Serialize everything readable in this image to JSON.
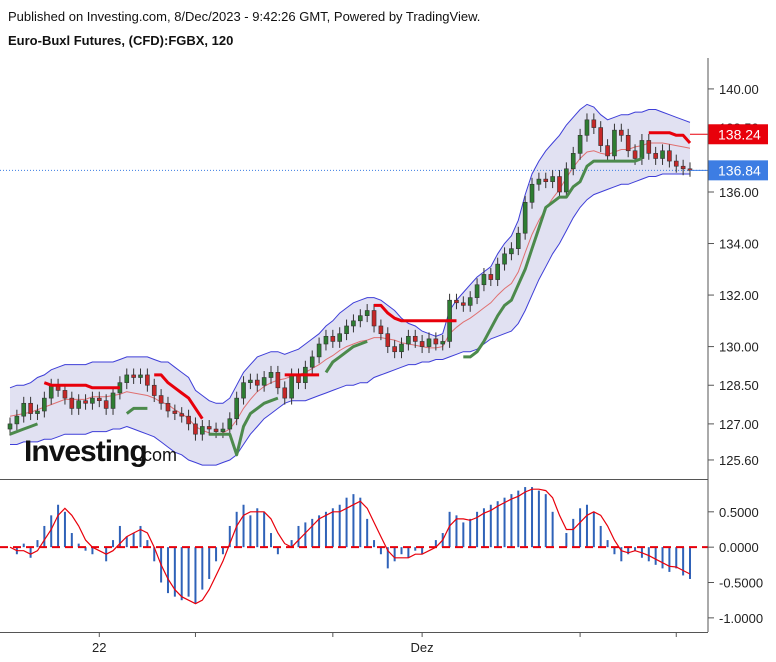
{
  "header": {
    "published": "Published on Investing.com, 8/Dec/2023 - 9:42:26 GMT, Powered by TradingView.",
    "title": "Euro-Buxl Futures, (CFD):FGBX, 120"
  },
  "logo": {
    "brand": "Investing",
    "suffix": ".com"
  },
  "chart_data": [
    {
      "type": "line",
      "panel": "price",
      "y_ticks": [
        140.0,
        138.5,
        136.0,
        134.0,
        132.0,
        130.0,
        128.5,
        127.0,
        125.6
      ],
      "y_tick_labels": [
        "140.00",
        "138.50",
        "136.00",
        "134.00",
        "132.00",
        "130.00",
        "128.50",
        "127.00",
        "125.60"
      ],
      "ylim": [
        124.9,
        141.2
      ],
      "price_labels": [
        {
          "value": 138.24,
          "text": "138.24",
          "color": "#e8000b"
        },
        {
          "value": 136.84,
          "text": "136.84",
          "color": "#3d7de3"
        }
      ],
      "last_price_line": 136.84,
      "closes": [
        127.0,
        127.3,
        127.8,
        127.4,
        127.5,
        128.0,
        128.5,
        128.3,
        128.0,
        127.6,
        127.9,
        127.8,
        128.0,
        127.9,
        127.6,
        128.2,
        128.6,
        128.9,
        128.8,
        128.9,
        128.5,
        128.1,
        127.8,
        127.5,
        127.4,
        127.3,
        127.0,
        126.6,
        126.9,
        126.8,
        126.7,
        126.8,
        127.2,
        128.0,
        128.6,
        128.7,
        128.5,
        128.8,
        129.0,
        128.4,
        128.0,
        128.9,
        128.6,
        129.2,
        129.6,
        130.1,
        130.4,
        130.2,
        130.5,
        130.8,
        131.0,
        131.2,
        131.4,
        130.8,
        130.5,
        130.0,
        129.8,
        130.1,
        130.4,
        130.2,
        130.0,
        130.3,
        130.1,
        130.2,
        131.8,
        131.7,
        131.6,
        131.9,
        132.4,
        132.8,
        132.6,
        133.2,
        133.6,
        133.8,
        134.4,
        135.6,
        136.3,
        136.5,
        136.4,
        136.6,
        136.0,
        136.9,
        137.5,
        138.2,
        138.8,
        138.5,
        137.8,
        137.4,
        138.4,
        138.2,
        137.6,
        137.3,
        138.0,
        137.5,
        137.3,
        137.6,
        137.2,
        137.0,
        136.9,
        136.84
      ],
      "bb_upper": [
        128.4,
        128.5,
        128.5,
        128.6,
        128.8,
        128.9,
        129.1,
        129.2,
        129.3,
        129.3,
        129.3,
        129.3,
        129.4,
        129.4,
        129.4,
        129.4,
        129.5,
        129.6,
        129.6,
        129.6,
        129.6,
        129.5,
        129.4,
        129.4,
        129.2,
        129.0,
        128.8,
        128.3,
        128.1,
        127.9,
        127.8,
        127.8,
        128.0,
        128.5,
        129.0,
        129.3,
        129.6,
        129.7,
        129.8,
        129.8,
        129.7,
        129.8,
        129.9,
        130.1,
        130.3,
        130.5,
        130.8,
        131.0,
        131.3,
        131.5,
        131.7,
        131.8,
        131.9,
        131.9,
        131.8,
        131.6,
        131.4,
        131.1,
        130.9,
        130.8,
        130.6,
        130.5,
        130.4,
        130.5,
        131.4,
        131.8,
        132.1,
        132.4,
        132.7,
        132.9,
        133.1,
        133.6,
        134.0,
        134.3,
        134.9,
        135.9,
        136.7,
        137.2,
        137.6,
        137.9,
        138.2,
        138.6,
        138.9,
        139.2,
        139.4,
        139.3,
        139.0,
        138.8,
        138.9,
        139.0,
        139.0,
        139.1,
        139.1,
        139.2,
        139.2,
        139.1,
        139.0,
        138.9,
        138.8,
        138.7
      ],
      "bb_lower": [
        126.2,
        126.2,
        126.3,
        126.3,
        126.3,
        126.4,
        126.4,
        126.5,
        126.6,
        126.6,
        126.6,
        126.6,
        126.7,
        126.7,
        126.7,
        126.8,
        126.8,
        126.9,
        126.8,
        126.7,
        126.6,
        126.5,
        126.3,
        126.1,
        125.9,
        125.8,
        125.6,
        125.5,
        125.4,
        125.4,
        125.4,
        125.5,
        125.6,
        125.8,
        126.2,
        126.6,
        126.9,
        127.2,
        127.4,
        127.6,
        127.8,
        127.9,
        127.9,
        127.9,
        128.0,
        128.1,
        128.2,
        128.3,
        128.4,
        128.5,
        128.5,
        128.6,
        128.6,
        128.8,
        128.9,
        129.0,
        129.1,
        129.2,
        129.3,
        129.3,
        129.4,
        129.4,
        129.5,
        129.5,
        129.6,
        129.7,
        129.8,
        129.8,
        129.9,
        130.1,
        130.3,
        130.4,
        130.5,
        130.6,
        130.9,
        131.4,
        132.0,
        132.6,
        133.1,
        133.6,
        134.0,
        134.5,
        135.0,
        135.4,
        135.7,
        135.9,
        136.0,
        136.1,
        136.2,
        136.3,
        136.3,
        136.4,
        136.5,
        136.6,
        136.6,
        136.7,
        136.7,
        136.7,
        136.7,
        136.7
      ],
      "bb_basis": [
        127.3,
        127.35,
        127.4,
        127.45,
        127.55,
        127.65,
        127.75,
        127.85,
        127.95,
        127.95,
        127.95,
        127.95,
        128.05,
        128.05,
        128.05,
        128.1,
        128.15,
        128.25,
        128.2,
        128.15,
        128.1,
        128.0,
        127.85,
        127.75,
        127.55,
        127.4,
        127.2,
        126.9,
        126.75,
        126.65,
        126.6,
        126.65,
        126.8,
        127.15,
        127.6,
        127.95,
        128.25,
        128.45,
        128.6,
        128.7,
        128.75,
        128.85,
        128.9,
        129.0,
        129.15,
        129.3,
        129.5,
        129.65,
        129.85,
        130.0,
        130.1,
        130.2,
        130.25,
        130.35,
        130.35,
        130.3,
        130.25,
        130.15,
        130.1,
        130.05,
        130.0,
        129.95,
        129.95,
        130.0,
        130.5,
        130.75,
        130.95,
        131.1,
        131.3,
        131.5,
        131.7,
        132.0,
        132.25,
        132.45,
        132.9,
        133.65,
        134.35,
        134.9,
        135.35,
        135.75,
        136.1,
        136.55,
        136.95,
        137.3,
        137.55,
        137.6,
        137.5,
        137.45,
        137.55,
        137.65,
        137.65,
        137.75,
        137.8,
        137.9,
        137.9,
        137.9,
        137.85,
        137.8,
        137.75,
        137.7
      ],
      "stop_red": [
        {
          "i0": 5,
          "i1": 16,
          "v": [
            128.6,
            128.5,
            128.5,
            128.5,
            128.5,
            128.5,
            128.5,
            128.4,
            128.4,
            128.4,
            128.4,
            128.4
          ]
        },
        {
          "i0": 21,
          "i1": 28,
          "v": [
            128.9,
            128.9,
            128.6,
            128.4,
            128.2,
            128.0,
            127.6,
            127.2
          ]
        },
        {
          "i0": 40,
          "i1": 45,
          "v": [
            128.9,
            128.9,
            128.9,
            128.9,
            128.9,
            128.9
          ]
        },
        {
          "i0": 53,
          "i1": 65,
          "v": [
            131.6,
            131.6,
            131.3,
            131.1,
            131.0,
            131.0,
            131.0,
            131.0,
            131.0,
            131.0,
            131.0,
            131.0,
            131.0
          ]
        },
        {
          "i0": 93,
          "i1": 99,
          "v": [
            138.3,
            138.3,
            138.3,
            138.3,
            138.2,
            138.2,
            137.9
          ]
        }
      ],
      "stop_green": [
        {
          "i0": 0,
          "i1": 4,
          "v": [
            126.6,
            126.7,
            126.8,
            126.9,
            127.0
          ]
        },
        {
          "i0": 17,
          "i1": 20,
          "v": [
            127.4,
            127.6,
            127.6,
            127.6
          ]
        },
        {
          "i0": 29,
          "i1": 39,
          "v": [
            126.6,
            126.6,
            126.6,
            126.6,
            125.8,
            126.9,
            127.4,
            127.6,
            127.8,
            127.9,
            128.0
          ]
        },
        {
          "i0": 46,
          "i1": 52,
          "v": [
            129.0,
            129.4,
            129.6,
            129.8,
            130.0,
            130.1,
            130.2
          ]
        },
        {
          "i0": 66,
          "i1": 92,
          "v": [
            129.6,
            129.6,
            129.8,
            130.2,
            130.7,
            131.2,
            131.6,
            131.8,
            132.4,
            133.0,
            133.8,
            134.6,
            135.4,
            135.6,
            135.8,
            135.8,
            136.2,
            136.4,
            137.0,
            137.2,
            137.2,
            137.2,
            137.2,
            137.2,
            137.2,
            137.2,
            137.3
          ]
        }
      ]
    },
    {
      "type": "bar",
      "panel": "oscillator",
      "y_ticks": [
        0.5,
        0.0,
        -0.5,
        -1.0
      ],
      "y_tick_labels": [
        "0.5000",
        "0.0000",
        "-0.5000",
        "-1.0000"
      ],
      "ylim": [
        -1.2,
        0.95
      ],
      "zero_line": 0.0,
      "histogram": [
        0.0,
        -0.1,
        0.05,
        -0.15,
        0.1,
        0.3,
        0.45,
        0.6,
        0.5,
        0.2,
        0.05,
        -0.05,
        -0.1,
        0.0,
        -0.2,
        0.1,
        0.3,
        0.15,
        0.2,
        0.3,
        0.1,
        -0.2,
        -0.5,
        -0.65,
        -0.7,
        -0.75,
        -0.7,
        -0.8,
        -0.6,
        -0.45,
        -0.2,
        -0.1,
        0.3,
        0.5,
        0.6,
        0.45,
        0.55,
        0.5,
        0.2,
        -0.1,
        0.0,
        0.1,
        0.3,
        0.35,
        0.4,
        0.45,
        0.5,
        0.55,
        0.6,
        0.7,
        0.75,
        0.7,
        0.4,
        0.1,
        -0.1,
        -0.3,
        -0.2,
        -0.1,
        -0.15,
        -0.05,
        -0.1,
        0.0,
        0.1,
        0.2,
        0.5,
        0.45,
        0.35,
        0.4,
        0.5,
        0.55,
        0.6,
        0.65,
        0.7,
        0.75,
        0.8,
        0.85,
        0.85,
        0.8,
        0.75,
        0.5,
        0.0,
        0.2,
        0.4,
        0.55,
        0.6,
        0.5,
        0.3,
        0.1,
        -0.1,
        -0.2,
        -0.1,
        -0.05,
        -0.15,
        -0.2,
        -0.25,
        -0.3,
        -0.35,
        -0.3,
        -0.4,
        -0.45
      ],
      "signal": [
        0.0,
        -0.05,
        -0.05,
        -0.1,
        -0.05,
        0.1,
        0.25,
        0.45,
        0.55,
        0.45,
        0.3,
        0.1,
        0.0,
        -0.05,
        -0.1,
        -0.05,
        0.05,
        0.15,
        0.2,
        0.25,
        0.2,
        0.0,
        -0.25,
        -0.45,
        -0.6,
        -0.7,
        -0.75,
        -0.8,
        -0.75,
        -0.6,
        -0.4,
        -0.2,
        0.05,
        0.3,
        0.45,
        0.5,
        0.5,
        0.5,
        0.4,
        0.2,
        0.05,
        0.0,
        0.1,
        0.2,
        0.3,
        0.4,
        0.45,
        0.5,
        0.5,
        0.55,
        0.6,
        0.65,
        0.55,
        0.35,
        0.15,
        -0.05,
        -0.15,
        -0.15,
        -0.15,
        -0.1,
        -0.1,
        -0.05,
        0.0,
        0.1,
        0.3,
        0.4,
        0.4,
        0.38,
        0.42,
        0.48,
        0.52,
        0.58,
        0.63,
        0.68,
        0.72,
        0.78,
        0.82,
        0.82,
        0.8,
        0.7,
        0.45,
        0.25,
        0.25,
        0.35,
        0.45,
        0.5,
        0.45,
        0.3,
        0.1,
        -0.05,
        -0.08,
        -0.05,
        -0.08,
        -0.12,
        -0.17,
        -0.22,
        -0.27,
        -0.28,
        -0.33,
        -0.38
      ]
    }
  ],
  "x_axis": {
    "ticks": [
      {
        "i": 13,
        "label": "22"
      },
      {
        "i": 27,
        "label": ""
      },
      {
        "i": 47,
        "label": ""
      },
      {
        "i": 60,
        "label": "Dez"
      },
      {
        "i": 83,
        "label": ""
      },
      {
        "i": 97,
        "label": ""
      }
    ]
  },
  "colors": {
    "bb_fill": "#dcdcf0",
    "bb_line": "#3e3ed8",
    "basis": "#e07070",
    "stop_red": "#e8000b",
    "stop_green": "#4c8a4c",
    "candle_up": "#2e7d32",
    "candle_down": "#c62828",
    "hist": "#2f62b8",
    "signal": "#e8000b",
    "zero": "#e8000b",
    "last_line": "#3d7de3"
  }
}
